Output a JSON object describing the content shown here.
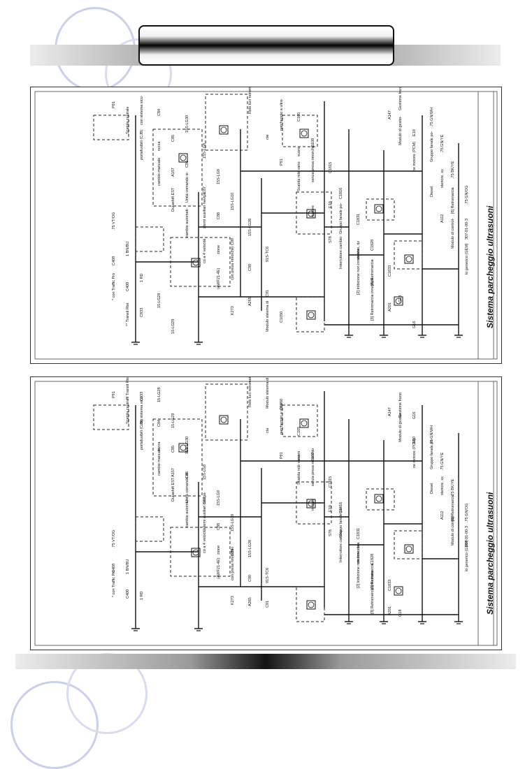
{
  "sheets": [
    {
      "title": "Sistema parcheggio ultrasuoni",
      "small_labels": [
        "P91",
        "Scatola centrale",
        "portafusibili (CJB)",
        "cambio manuale",
        "Durashift EST",
        "cambio automati-",
        "co a 4 velocità",
        "(AWF21-4E)",
        "K273",
        "Relè luci retromar-",
        "cia",
        "P91",
        "Scatola relè vano",
        "motore",
        "S78",
        "Interruttore cambio",
        "[2] Inibizione non innestata",
        "[3] Retromarcia innestata",
        "A147",
        "Modulo di gestio-",
        "ne motore (PCM)",
        "Diesel",
        "A112",
        "Modulo di control-",
        "lo generico (GEM)",
        "* con Traffic Pro",
        "** Transit Rist",
        "con sistema sicu-",
        "rezza",
        "A157",
        "Unità comando si-",
        "stemi ausiliari naviga-",
        "zione",
        "con presa rimorchio",
        "A265",
        "Modulo sistema di",
        "parcheggio a ultra-",
        "suoni",
        "senza presa rimorchio",
        "E10",
        "Gruppo fanale po-",
        "steriore, dx",
        "[6] Retromarcia",
        "A201",
        "Gestione freno",
        "E10",
        "Gruppo fanale po-",
        "steriore, sx",
        "[6] Retromarcia",
        "307-01-00-3",
        "C408",
        "C400",
        "C833",
        "C84",
        "C85",
        "C86",
        "C87",
        "C88",
        "C89",
        "C90",
        "C91",
        "C1050",
        "C105",
        "C108",
        "C1815",
        "C1816",
        "C1831",
        "C1828",
        "C1833",
        "G18",
        "G16",
        ".75 GN/WH",
        ".75 GN/YE",
        ".75 BK/YE",
        ".75 GN/OG",
        ".75 VT/OG",
        "1 BN/BU",
        "1 RD",
        "15-LG28",
        "15-LG29",
        "15S-LG30",
        "15S-LG8",
        "15S-LG9",
        "15S-LG10",
        "15S-LG28",
        "91S-TC6"
      ]
    },
    {
      "title": "Sistema parcheggio ultrasuoni",
      "small_labels": [
        "P91",
        "Scatola centrale",
        "portafusibili (CJB)",
        "cambio manuale",
        "Durashift EST",
        "cambio automati-",
        "co a 4 velocità",
        "(AWF21-4E)",
        "K273",
        "Relè luci retromar-",
        "cia",
        "P91",
        "Scatola relè vano",
        "motore",
        "S78",
        "Interruttore cambio",
        "[2] Inibizione non innestata",
        "[3] Retromarcia innestata",
        "A147",
        "Modulo di gestio-",
        "ne motore (PCM)",
        "Diesel",
        "A112",
        "Modulo di control-",
        "lo generico (GEM)",
        "* con Traffic Pro",
        "** Transit Rist",
        "con sistema sicu-",
        "rezza",
        "A157",
        "Unità comando si-",
        "stemi ausiliari naviga-",
        "zione",
        "con presa rimorchio",
        "A265",
        "Modulo sistema di",
        "parcheggio a ultra-",
        "suoni",
        "senza presa rimorchio",
        "E10",
        "Gruppo fanale po-",
        "steriore, dx",
        "[6] Retromarcia",
        "A201",
        "Gestione freno",
        "E10",
        "Gruppo fanale po-",
        "steriore, sx",
        "[6] Retromarcia",
        "307-01-00-3",
        "C408",
        "C400",
        "C833",
        "C84",
        "C85",
        "C86",
        "C87",
        "C88",
        "C89",
        "C90",
        "C91",
        "C1050",
        "C105",
        "C108",
        "C1815",
        "C1816",
        "C1831",
        "C1828",
        "C1833",
        "G18",
        "G16",
        ".75 GN/WH",
        ".75 GN/YE",
        ".75 BK/YE",
        ".75 GN/OG",
        ".75 VT/OG",
        "1 BN/BU",
        "1 RD",
        "15-LG28",
        "15-LG29",
        "15S-LG30",
        "15S-LG8",
        "15S-LG9",
        "15S-LG10",
        "15S-LG28",
        "91S-TC6"
      ]
    }
  ]
}
